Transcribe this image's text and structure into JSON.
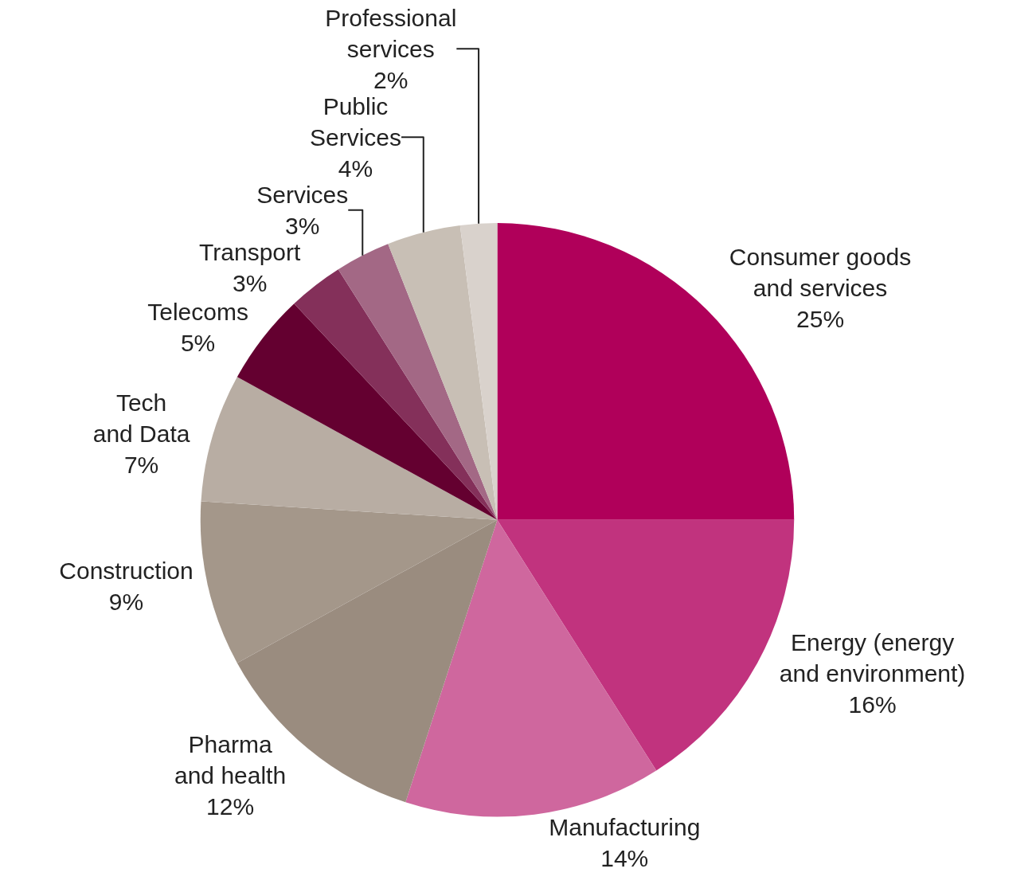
{
  "chart_data": {
    "type": "pie",
    "categories": [
      "Consumer goods\nand services",
      "Energy (energy\nand environment)",
      "Manufacturing",
      "Pharma\nand health",
      "Construction",
      "Tech\nand Data",
      "Telecoms",
      "Transport",
      "Services",
      "Public\nServices",
      "Professional\nservices"
    ],
    "values": [
      25,
      16,
      14,
      12,
      9,
      7,
      5,
      3,
      3,
      4,
      2
    ],
    "value_labels": [
      "25%",
      "16%",
      "14%",
      "12%",
      "9%",
      "7%",
      "5%",
      "3%",
      "3%",
      "4%",
      "2%"
    ],
    "colors": [
      "#b0005a",
      "#c1337e",
      "#cf679e",
      "#9a8c7f",
      "#a4978a",
      "#b8ada3",
      "#640030",
      "#84305a",
      "#a36885",
      "#c8bfb5",
      "#d9d2cc"
    ],
    "legend": false
  }
}
